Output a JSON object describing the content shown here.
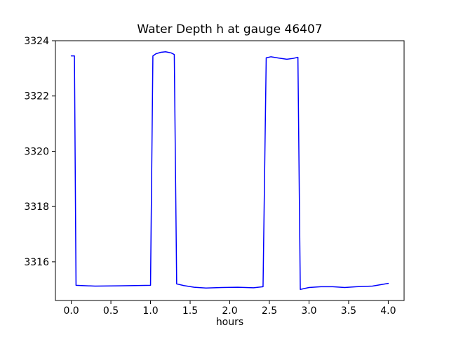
{
  "chart_data": {
    "type": "line",
    "title": "Water Depth h at gauge 46407",
    "xlabel": "hours",
    "ylabel": "",
    "grid": false,
    "legend": "none",
    "xlim": [
      -0.2,
      4.2
    ],
    "ylim": [
      3314.6,
      3324.0
    ],
    "xticks": [
      0.0,
      0.5,
      1.0,
      1.5,
      2.0,
      2.5,
      3.0,
      3.5,
      4.0
    ],
    "xtick_labels": [
      "0.0",
      "0.5",
      "1.0",
      "1.5",
      "2.0",
      "2.5",
      "3.0",
      "3.5",
      "4.0"
    ],
    "yticks": [
      3316,
      3318,
      3320,
      3322,
      3324
    ],
    "ytick_labels": [
      "3316",
      "3318",
      "3320",
      "3322",
      "3324"
    ],
    "colors": {
      "line": "#0000ff",
      "spine": "#000000",
      "text": "#000000",
      "background": "#ffffff"
    },
    "series": [
      {
        "name": "h",
        "x": [
          0.0,
          0.04,
          0.06,
          0.3,
          0.6,
          1.0,
          1.03,
          1.07,
          1.13,
          1.19,
          1.26,
          1.3,
          1.33,
          1.42,
          1.55,
          1.7,
          1.9,
          2.1,
          2.3,
          2.42,
          2.46,
          2.52,
          2.62,
          2.72,
          2.8,
          2.86,
          2.89,
          3.0,
          3.15,
          3.3,
          3.45,
          3.6,
          3.8,
          4.0
        ],
        "y": [
          3323.45,
          3323.45,
          3315.15,
          3315.12,
          3315.13,
          3315.15,
          3323.45,
          3323.53,
          3323.58,
          3323.6,
          3323.56,
          3323.5,
          3315.2,
          3315.14,
          3315.08,
          3315.05,
          3315.07,
          3315.08,
          3315.06,
          3315.1,
          3323.38,
          3323.42,
          3323.37,
          3323.33,
          3323.36,
          3323.4,
          3315.0,
          3315.07,
          3315.1,
          3315.1,
          3315.07,
          3315.1,
          3315.12,
          3315.22
        ]
      }
    ]
  }
}
